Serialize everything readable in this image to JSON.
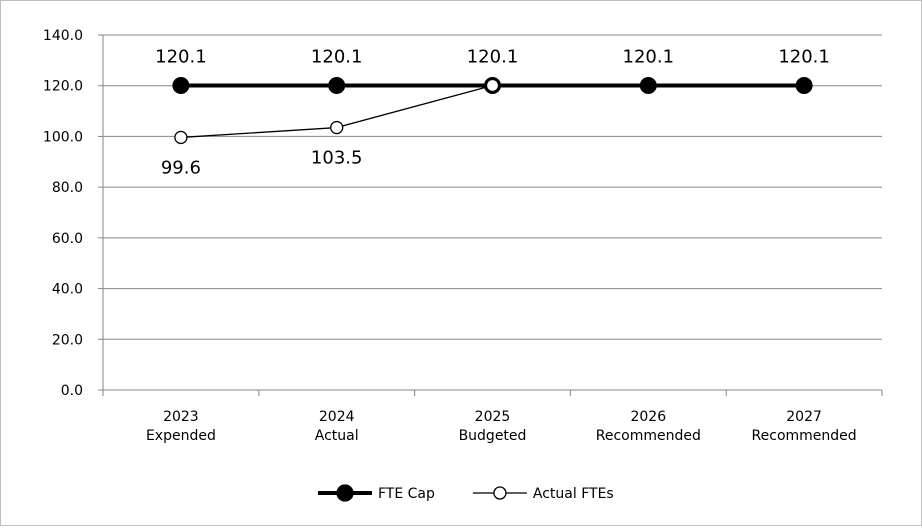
{
  "chart_data": {
    "type": "line",
    "categories": [
      [
        "2023",
        "Expended"
      ],
      [
        "2024",
        "Actual"
      ],
      [
        "2025",
        "Budgeted"
      ],
      [
        "2026",
        "Recommended"
      ],
      [
        "2027",
        "Recommended"
      ]
    ],
    "series": [
      {
        "name": "FTE Cap",
        "color": "#000000",
        "marker": "filled",
        "label_position": "above",
        "values": [
          120.1,
          120.1,
          120.1,
          120.1,
          120.1
        ],
        "value_labels": [
          "120.1",
          "120.1",
          "120.1",
          "120.1",
          "120.1"
        ]
      },
      {
        "name": "Actual FTEs",
        "color": "#000000",
        "marker": "open",
        "label_position": "below",
        "values": [
          99.6,
          103.5,
          120.1,
          null,
          null
        ],
        "value_labels": [
          "99.6",
          "103.5",
          null,
          null,
          null
        ]
      }
    ],
    "ylim": [
      0,
      140
    ],
    "yticks": [
      {
        "value": 0,
        "label": "0.0"
      },
      {
        "value": 20,
        "label": "20.0"
      },
      {
        "value": 40,
        "label": "40.0"
      },
      {
        "value": 60,
        "label": "60.0"
      },
      {
        "value": 80,
        "label": "80.0"
      },
      {
        "value": 100,
        "label": "100.0"
      },
      {
        "value": 120,
        "label": "120.0"
      },
      {
        "value": 140,
        "label": "140.0"
      }
    ],
    "grid": true,
    "legend": "bottom"
  }
}
